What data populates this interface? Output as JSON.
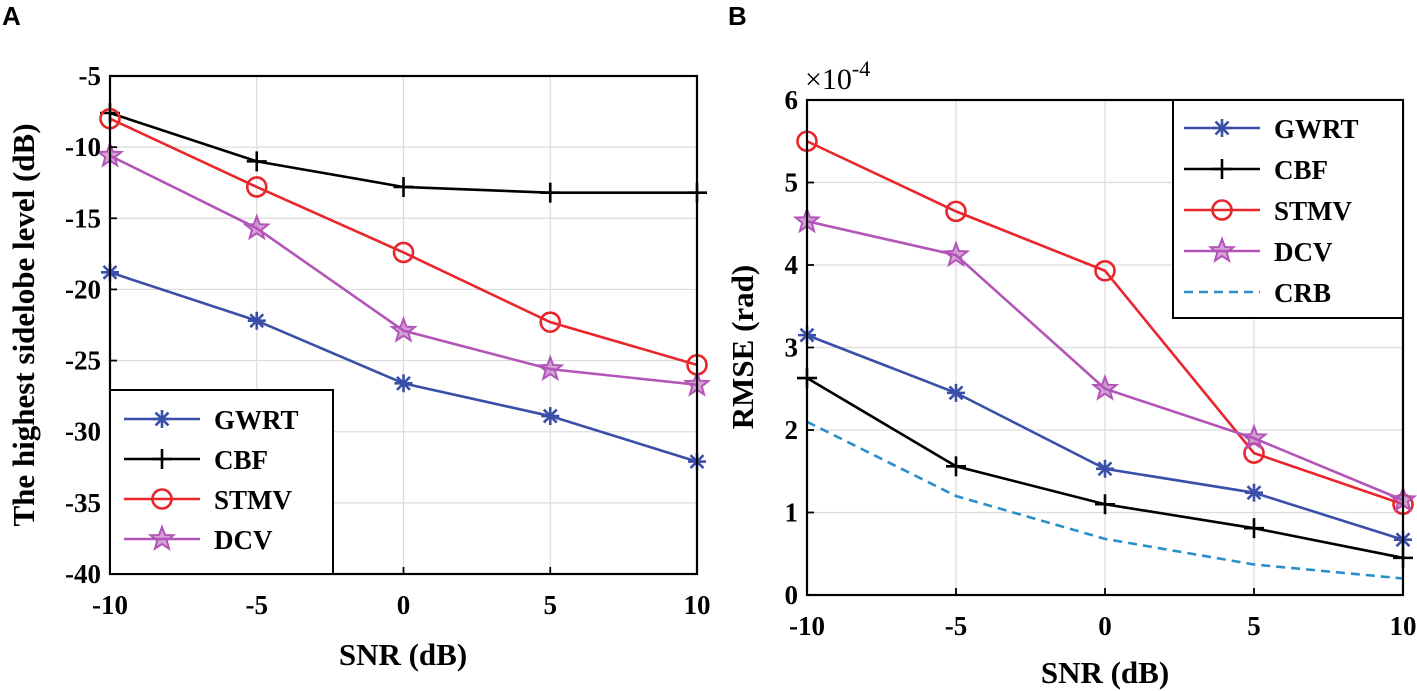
{
  "colors": {
    "GWRT": "#3a4fa8",
    "CBF": "#000000",
    "STMV": "#e8262b",
    "DCV": "#b355b8",
    "CRB": "#2a8fc9",
    "grid": "#dcdcdc"
  },
  "chart_data": [
    {
      "panel": "A",
      "type": "line",
      "title": "",
      "xlabel": "SNR (dB)",
      "ylabel": "The highest sidelobe level (dB)",
      "xlim": [
        -10,
        10
      ],
      "ylim": [
        -40,
        -5
      ],
      "grid": true,
      "x": [
        -10,
        -5,
        0,
        5,
        10
      ],
      "xticks": [
        -10,
        -5,
        0,
        5,
        10
      ],
      "xtick_labels": [
        "-10",
        "-5",
        "0",
        "5",
        "10"
      ],
      "yticks": [
        -40,
        -35,
        -30,
        -25,
        -20,
        -15,
        -10,
        -5
      ],
      "ytick_labels": [
        "-40",
        "-35",
        "-30",
        "-25",
        "-20",
        "-15",
        "-10",
        "-5"
      ],
      "legend_position": "bottom-left",
      "series": [
        {
          "name": "GWRT",
          "marker": "asterisk",
          "values": [
            -18.8,
            -22.2,
            -26.6,
            -28.9,
            -32.1
          ]
        },
        {
          "name": "CBF",
          "marker": "plus",
          "values": [
            -7.6,
            -11.0,
            -12.8,
            -13.2,
            -13.2
          ]
        },
        {
          "name": "STMV",
          "marker": "circle",
          "values": [
            -8.0,
            -12.8,
            -17.4,
            -22.3,
            -25.3
          ]
        },
        {
          "name": "DCV",
          "marker": "star",
          "values": [
            -10.6,
            -15.7,
            -22.9,
            -25.6,
            -26.7
          ]
        }
      ]
    },
    {
      "panel": "B",
      "type": "line",
      "title": "",
      "xlabel": "SNR (dB)",
      "ylabel": "RMSE (rad)",
      "exponent_base": "×10",
      "exponent_power": "-4",
      "xlim": [
        -10,
        10
      ],
      "ylim": [
        0,
        6
      ],
      "grid": true,
      "x": [
        -10,
        -5,
        0,
        5,
        10
      ],
      "xticks": [
        -10,
        -5,
        0,
        5,
        10
      ],
      "xtick_labels": [
        "-10",
        "-5",
        "0",
        "5",
        "10"
      ],
      "yticks": [
        0,
        1,
        2,
        3,
        4,
        5,
        6
      ],
      "ytick_labels": [
        "0",
        "1",
        "2",
        "3",
        "4",
        "5",
        "6"
      ],
      "legend_position": "top-right",
      "series": [
        {
          "name": "GWRT",
          "marker": "asterisk",
          "values": [
            3.15,
            2.45,
            1.53,
            1.24,
            0.67
          ]
        },
        {
          "name": "CBF",
          "marker": "plus",
          "values": [
            2.63,
            1.56,
            1.1,
            0.81,
            0.45
          ]
        },
        {
          "name": "STMV",
          "marker": "circle",
          "values": [
            5.5,
            4.65,
            3.93,
            1.72,
            1.1
          ]
        },
        {
          "name": "DCV",
          "marker": "star",
          "values": [
            4.53,
            4.12,
            2.5,
            1.9,
            1.15
          ]
        },
        {
          "name": "CRB",
          "marker": "none",
          "dashed": true,
          "values": [
            2.1,
            1.2,
            0.68,
            0.37,
            0.2
          ]
        }
      ]
    }
  ]
}
